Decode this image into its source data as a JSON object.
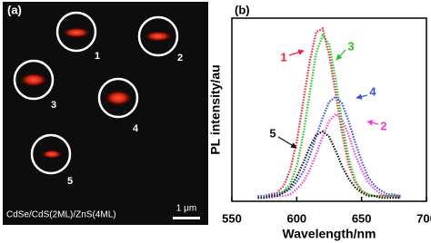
{
  "panel_a": {
    "label": "(a)",
    "spots": [
      "1",
      "2",
      "3",
      "4",
      "5"
    ],
    "caption": "CdSe/CdS(2ML)/ZnS(4ML)",
    "scale_bar": "1 μm"
  },
  "chart_data": {
    "type": "line",
    "panel_label": "(b)",
    "x_label": "Wavelength/nm",
    "y_label": "PL intensity/au",
    "x": [
      570,
      575,
      580,
      585,
      590,
      595,
      600,
      605,
      610,
      615,
      620,
      625,
      630,
      635,
      640,
      645,
      650,
      655,
      660,
      665,
      670,
      675,
      680
    ],
    "xlim": [
      550,
      700
    ],
    "xticks": [
      550,
      600,
      650,
      700
    ],
    "ylim": [
      0,
      1.05
    ],
    "series": [
      {
        "name": "1",
        "color": "#e8243a",
        "values": [
          0.03,
          0.03,
          0.04,
          0.05,
          0.09,
          0.18,
          0.34,
          0.57,
          0.8,
          0.97,
          0.99,
          0.84,
          0.62,
          0.39,
          0.21,
          0.11,
          0.06,
          0.04,
          0.03,
          0.03,
          0.03,
          0.03,
          0.03
        ]
      },
      {
        "name": "2",
        "color": "#f03fd6",
        "values": [
          0.02,
          0.02,
          0.02,
          0.03,
          0.03,
          0.04,
          0.07,
          0.11,
          0.18,
          0.27,
          0.37,
          0.46,
          0.5,
          0.47,
          0.38,
          0.27,
          0.18,
          0.11,
          0.07,
          0.04,
          0.03,
          0.03,
          0.02
        ]
      },
      {
        "name": "3",
        "color": "#22c422",
        "values": [
          0.03,
          0.03,
          0.03,
          0.04,
          0.06,
          0.1,
          0.2,
          0.38,
          0.62,
          0.85,
          0.95,
          0.9,
          0.7,
          0.45,
          0.25,
          0.12,
          0.06,
          0.04,
          0.03,
          0.03,
          0.03,
          0.03,
          0.03
        ]
      },
      {
        "name": "4",
        "color": "#3d4fe0",
        "values": [
          0.03,
          0.03,
          0.04,
          0.04,
          0.05,
          0.07,
          0.11,
          0.17,
          0.26,
          0.37,
          0.48,
          0.57,
          0.6,
          0.56,
          0.46,
          0.34,
          0.23,
          0.14,
          0.09,
          0.06,
          0.04,
          0.04,
          0.03
        ]
      },
      {
        "name": "5",
        "color": "#111111",
        "values": [
          0.02,
          0.02,
          0.03,
          0.03,
          0.05,
          0.08,
          0.14,
          0.22,
          0.31,
          0.38,
          0.4,
          0.37,
          0.29,
          0.2,
          0.13,
          0.08,
          0.05,
          0.03,
          0.03,
          0.02,
          0.02,
          0.02,
          0.02
        ]
      }
    ]
  }
}
